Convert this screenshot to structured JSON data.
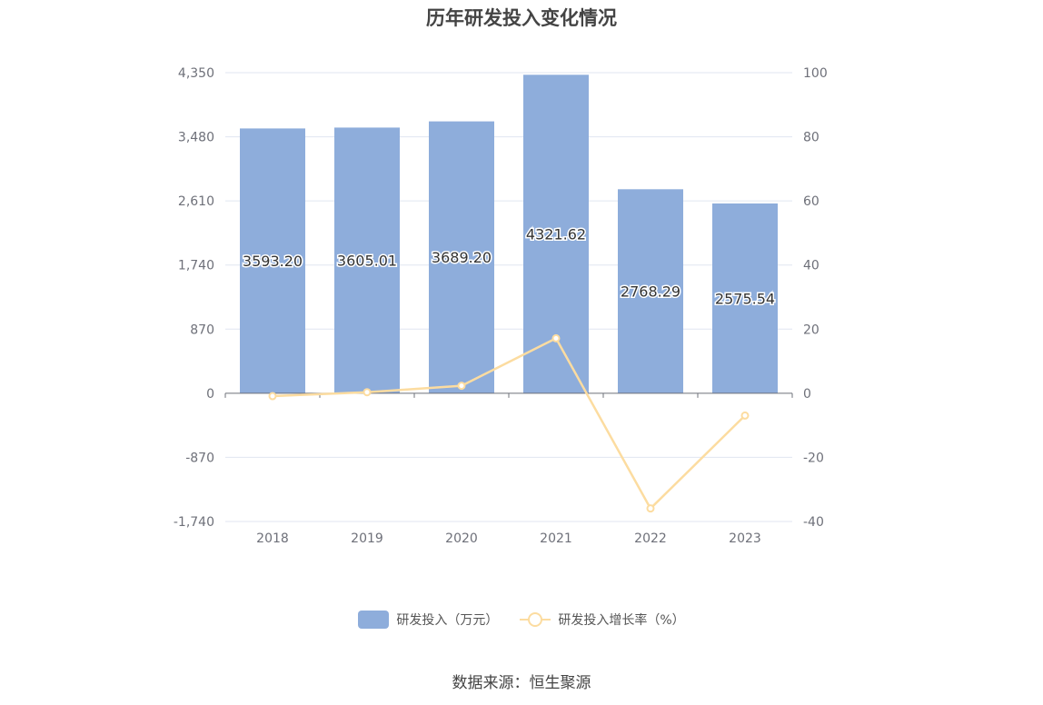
{
  "chart_data": {
    "type": "bar",
    "title": "历年研发投入变化情况",
    "categories": [
      "2018",
      "2019",
      "2020",
      "2021",
      "2022",
      "2023"
    ],
    "series": [
      {
        "name": "研发投入（万元）",
        "type": "bar",
        "axis": "left",
        "values": [
          3593.2,
          3605.01,
          3689.2,
          4321.62,
          2768.29,
          2575.54
        ],
        "labels": [
          "3593.20",
          "3605.01",
          "3689.20",
          "4321.62",
          "2768.29",
          "2575.54"
        ],
        "color": "#8eaddb"
      },
      {
        "name": "研发投入增长率（%）",
        "type": "line",
        "axis": "right",
        "values": [
          -0.9,
          0.33,
          2.34,
          17.14,
          -35.94,
          -6.96
        ],
        "color": "#fcdca0"
      }
    ],
    "y_left": {
      "ylim": [
        -1740,
        4350
      ],
      "ticks": [
        4350,
        3480,
        2610,
        1740,
        870,
        0,
        -870,
        -1740
      ],
      "tick_labels": [
        "4,350",
        "3,480",
        "2,610",
        "1,740",
        "870",
        "0",
        "-870",
        "-1,740"
      ]
    },
    "y_right": {
      "ylim": [
        -40,
        100
      ],
      "ticks": [
        100,
        80,
        60,
        40,
        20,
        0,
        -20,
        -40
      ],
      "tick_labels": [
        "100",
        "80",
        "60",
        "40",
        "20",
        "0",
        "-20",
        "-40"
      ]
    },
    "grid": true,
    "legend_position": "bottom"
  },
  "footer": {
    "source": "数据来源：恒生聚源"
  }
}
